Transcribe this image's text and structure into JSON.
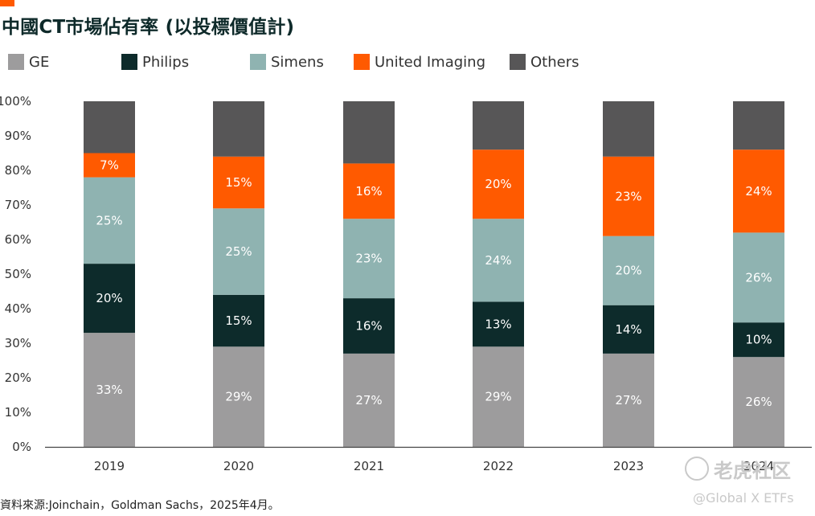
{
  "title": "中國CT市場佔有率 (以投標價值計)",
  "source": "資料來源:Joinchain，Goldman Sachs，2025年4月。",
  "watermark": {
    "text": "老虎社区",
    "handle": "@Global X ETFs"
  },
  "colors": {
    "GE": "#9d9c9d",
    "Philips": "#0d2b2b",
    "Simens": "#8fb3b1",
    "United Imaging": "#ff5a00",
    "Others": "#575657",
    "accent": "#ff5a00"
  },
  "chart_data": {
    "type": "bar",
    "stacked": true,
    "categories": [
      "2019",
      "2020",
      "2021",
      "2022",
      "2023",
      "2024"
    ],
    "series": [
      {
        "name": "GE",
        "values": [
          33,
          29,
          27,
          29,
          27,
          26
        ],
        "labels": [
          "33%",
          "29%",
          "27%",
          "29%",
          "27%",
          "26%"
        ]
      },
      {
        "name": "Philips",
        "values": [
          20,
          15,
          16,
          13,
          14,
          10
        ],
        "labels": [
          "20%",
          "15%",
          "16%",
          "13%",
          "14%",
          "10%"
        ]
      },
      {
        "name": "Simens",
        "values": [
          25,
          25,
          23,
          24,
          20,
          26
        ],
        "labels": [
          "25%",
          "25%",
          "23%",
          "24%",
          "20%",
          "26%"
        ]
      },
      {
        "name": "United Imaging",
        "values": [
          7,
          15,
          16,
          20,
          23,
          24
        ],
        "labels": [
          "7%",
          "15%",
          "16%",
          "20%",
          "23%",
          "24%"
        ]
      },
      {
        "name": "Others",
        "values": [
          15,
          16,
          18,
          14,
          16,
          14
        ],
        "labels": [
          "",
          "",
          "",
          "",
          "",
          ""
        ]
      }
    ],
    "ylim": [
      0,
      100
    ],
    "yticks": [
      "0%",
      "10%",
      "20%",
      "30%",
      "40%",
      "50%",
      "60%",
      "70%",
      "80%",
      "90%",
      "100%"
    ],
    "legend_position": "top",
    "grid": false
  }
}
